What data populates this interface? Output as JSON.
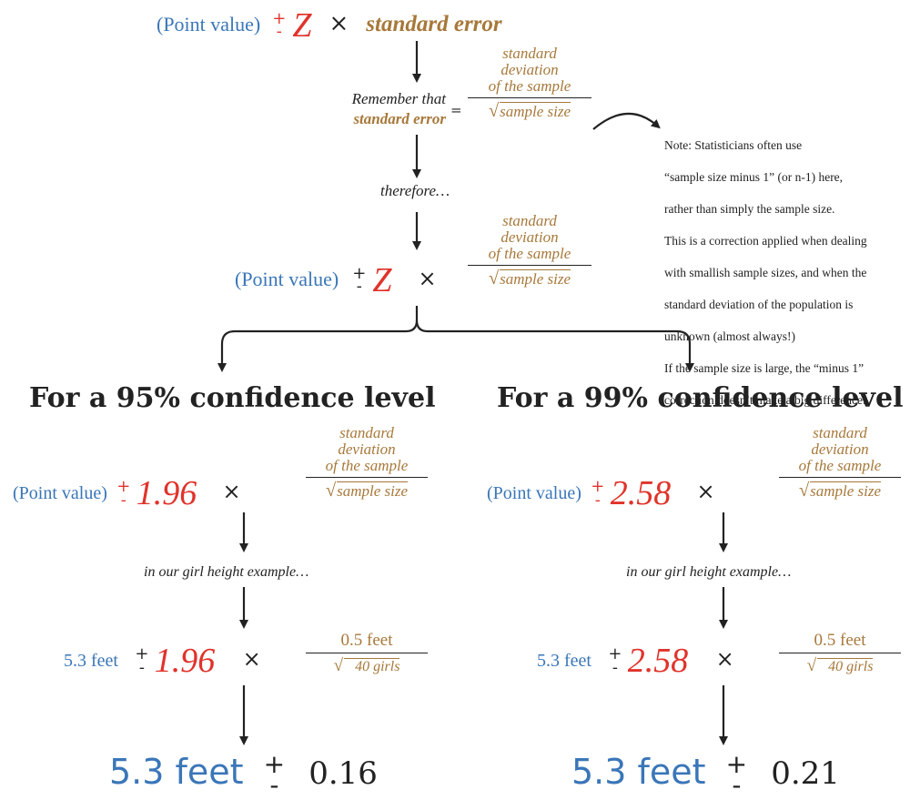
{
  "top_formula": {
    "point_value": "(Point value)",
    "plus": "+",
    "minus": "-",
    "z": "Z",
    "times": "×",
    "standard_error": "standard error"
  },
  "remember": {
    "line1": "Remember that",
    "line2": "standard error",
    "equals": "=",
    "num": [
      "standard",
      "deviation",
      "of the sample"
    ],
    "den": "sample size"
  },
  "therefore": "therefore…",
  "note": {
    "lines": [
      "Note: Statisticians often use",
      "“sample size minus 1” (or n-1) here,",
      "rather than simply the sample size.",
      "This is a correction applied when dealing",
      "with smallish sample sizes, and when the",
      "standard deviation of the population is",
      "unknown (almost always!)",
      "If the sample size is large, the “minus 1”",
      "correction doesn’t make a big difference."
    ]
  },
  "middle_formula": {
    "point_value": "(Point value)",
    "plus": "+",
    "minus": "-",
    "z": "Z",
    "times": "×",
    "num": [
      "standard",
      "deviation",
      "of the sample"
    ],
    "den": "sample size"
  },
  "left": {
    "heading": "For a 95% confidence level",
    "point_value": "(Point value)",
    "plus": "+",
    "minus": "-",
    "z_value": "1.96",
    "times": "×",
    "num": [
      "standard",
      "deviation",
      "of the sample"
    ],
    "den": "sample size",
    "example": "in our girl height example…",
    "ex_point": "5.3 feet",
    "ex_num": "0.5 feet",
    "ex_den": "40 girls",
    "result_point": "5.3 feet",
    "result_pm_plus": "+",
    "result_pm_minus": "-",
    "result_margin": "0.16"
  },
  "right": {
    "heading": "For a 99% confidence level",
    "point_value": "(Point value)",
    "plus": "+",
    "minus": "-",
    "z_value": "2.58",
    "times": "×",
    "num": [
      "standard",
      "deviation",
      "of the sample"
    ],
    "den": "sample size",
    "example": "in our girl height example…",
    "ex_point": "5.3 feet",
    "ex_num": "0.5 feet",
    "ex_den": "40 girls",
    "result_point": "5.3 feet",
    "result_pm_plus": "+",
    "result_pm_minus": "-",
    "result_margin": "0.21"
  }
}
